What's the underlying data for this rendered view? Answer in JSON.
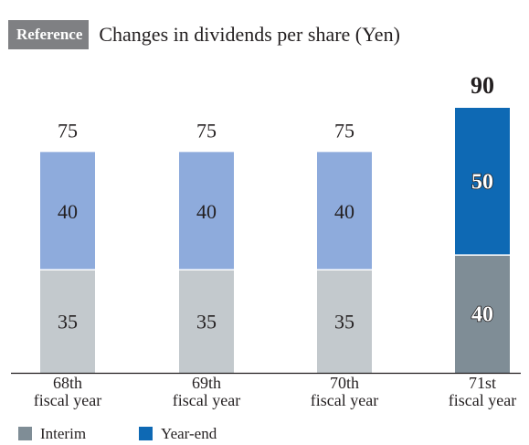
{
  "header": {
    "badge": "Reference",
    "title": "Changes in dividends per share (Yen)"
  },
  "chart_data": {
    "type": "bar",
    "stacked": true,
    "title": "Changes in dividends per share (Yen)",
    "categories": [
      "68th fiscal year",
      "69th fiscal year",
      "70th fiscal year",
      "71st fiscal year"
    ],
    "category_lines": [
      [
        "68th",
        "fiscal year"
      ],
      [
        "69th",
        "fiscal year"
      ],
      [
        "70th",
        "fiscal year"
      ],
      [
        "71st",
        "fiscal year"
      ]
    ],
    "series": [
      {
        "name": "Interim",
        "values": [
          35,
          35,
          35,
          40
        ],
        "colors": [
          "#c3c9cd",
          "#c3c9cd",
          "#c3c9cd",
          "#7f8d96"
        ]
      },
      {
        "name": "Year-end",
        "values": [
          40,
          40,
          40,
          50
        ],
        "colors": [
          "#8eabdc",
          "#8eabdc",
          "#8eabdc",
          "#0e69b4"
        ]
      }
    ],
    "totals": [
      75,
      75,
      75,
      90
    ],
    "ylim": [
      0,
      90
    ],
    "grid": false,
    "legend": {
      "position": "bottom-left",
      "items": [
        {
          "label": "Interim",
          "color": "#7f8d96"
        },
        {
          "label": "Year-end",
          "color": "#0e69b4"
        }
      ]
    }
  }
}
